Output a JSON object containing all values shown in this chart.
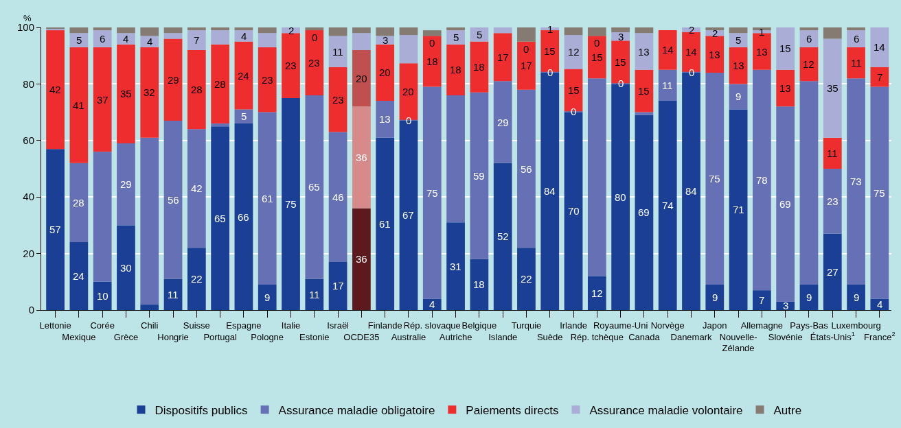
{
  "chart_data": {
    "type": "bar",
    "stacked": true,
    "ylabel": "%",
    "categories": [
      "Lettonie",
      "Mexique",
      "Corée",
      "Grèce",
      "Chili",
      "Hongrie",
      "Suisse",
      "Portugal",
      "Espagne",
      "Pologne",
      "Italie",
      "Estonie",
      "Israël",
      "OCDE35",
      "Finlande",
      "Australie",
      "Rép. slovaque",
      "Autriche",
      "Belgique",
      "Islande",
      "Turquie",
      "Suède",
      "Irlande",
      "Rép. tchèque",
      "Royaume-Uni",
      "Canada",
      "Norvège",
      "Danemark",
      "Japon",
      "Nouvelle-Zélande",
      "Allemagne",
      "Slovénie",
      "Pays-Bas",
      "États-Unis$^{1}$",
      "Luxembourg",
      "France$^{2}$"
    ],
    "ylim": [
      0,
      100
    ],
    "yticks": [
      0,
      20,
      40,
      60,
      80,
      100
    ],
    "grid": "y",
    "legend": "bottom",
    "series": [
      {
        "name": "Dispositifs publics",
        "color": "#1a3f95",
        "colors": [
          "#1a3f95",
          "#1a3f95",
          "#1a3f95",
          "#1a3f95",
          "#1a3f95",
          "#1a3f95",
          "#1a3f95",
          "#1a3f95",
          "#1a3f95",
          "#1a3f95",
          "#1a3f95",
          "#1a3f95",
          "#1a3f95",
          "#5c1a1e",
          "#1a3f95",
          "#1a3f95",
          "#1a3f95",
          "#1a3f95",
          "#1a3f95",
          "#1a3f95",
          "#1a3f95",
          "#1a3f95",
          "#1a3f95",
          "#1a3f95",
          "#1a3f95",
          "#1a3f95",
          "#1a3f95",
          "#1a3f95",
          "#1a3f95",
          "#1a3f95",
          "#1a3f95",
          "#1a3f95",
          "#1a3f95",
          "#1a3f95",
          "#1a3f95",
          "#1a3f95"
        ],
        "values": [
          57,
          24,
          10,
          30,
          2,
          11,
          22,
          65,
          66,
          9,
          75,
          11,
          17,
          36,
          61,
          67,
          4,
          31,
          18,
          52,
          22,
          84,
          70,
          12,
          80,
          69,
          74,
          84,
          9,
          71,
          7,
          3,
          9,
          27,
          9,
          4
        ],
        "value_labels": [
          "57",
          "24",
          "10",
          "30",
          null,
          "11",
          "22",
          "65",
          "66",
          "9",
          "75",
          "11",
          "17",
          "36",
          "61",
          "67",
          "4",
          "31",
          "18",
          "52",
          "22",
          "84",
          "70",
          "12",
          "80",
          "69",
          "74",
          "84",
          "9",
          "71",
          "7",
          "3",
          "9",
          "27",
          "9",
          "4"
        ]
      },
      {
        "name": "Assurance maladie obligatoire",
        "color": "#6670b5",
        "colors": [
          "#6670b5",
          "#6670b5",
          "#6670b5",
          "#6670b5",
          "#6670b5",
          "#6670b5",
          "#6670b5",
          "#6670b5",
          "#6670b5",
          "#6670b5",
          "#6670b5",
          "#6670b5",
          "#6670b5",
          "#d68b8a",
          "#6670b5",
          "#6670b5",
          "#6670b5",
          "#6670b5",
          "#6670b5",
          "#6670b5",
          "#6670b5",
          "#6670b5",
          "#6670b5",
          "#6670b5",
          "#6670b5",
          "#6670b5",
          "#6670b5",
          "#6670b5",
          "#6670b5",
          "#6670b5",
          "#6670b5",
          "#6670b5",
          "#6670b5",
          "#6670b5",
          "#6670b5",
          "#6670b5"
        ],
        "values": [
          0,
          28,
          46,
          29,
          59,
          56,
          42,
          1,
          5,
          61,
          0,
          65,
          46,
          36,
          13,
          0.3,
          75,
          45,
          59,
          29,
          56,
          0.3,
          0.3,
          70,
          0.3,
          1,
          11,
          0.3,
          75,
          9,
          78,
          69,
          72,
          23,
          73,
          75
        ],
        "value_labels": [
          null,
          "28",
          null,
          "29",
          null,
          "56",
          "42",
          null,
          "5",
          "61",
          null,
          "65",
          "46",
          "36",
          "13",
          "0",
          "75",
          null,
          "59",
          "29",
          "56",
          "0",
          "0",
          null,
          "0",
          null,
          "11",
          "0",
          "75",
          "9",
          "78",
          "69",
          null,
          "23",
          "73",
          "75"
        ]
      },
      {
        "name": "Paiements directs",
        "color": "#ee2e2e",
        "colors": [
          "#ee2e2e",
          "#ee2e2e",
          "#ee2e2e",
          "#ee2e2e",
          "#ee2e2e",
          "#ee2e2e",
          "#ee2e2e",
          "#ee2e2e",
          "#ee2e2e",
          "#ee2e2e",
          "#ee2e2e",
          "#ee2e2e",
          "#ee2e2e",
          "#c0504f",
          "#ee2e2e",
          "#ee2e2e",
          "#ee2e2e",
          "#ee2e2e",
          "#ee2e2e",
          "#ee2e2e",
          "#ee2e2e",
          "#ee2e2e",
          "#ee2e2e",
          "#ee2e2e",
          "#ee2e2e",
          "#ee2e2e",
          "#ee2e2e",
          "#ee2e2e",
          "#ee2e2e",
          "#ee2e2e",
          "#ee2e2e",
          "#ee2e2e",
          "#ee2e2e",
          "#ee2e2e",
          "#ee2e2e",
          "#ee2e2e"
        ],
        "values": [
          42,
          41,
          37,
          35,
          32,
          29,
          28,
          28,
          24,
          23,
          23,
          23,
          23,
          20,
          20,
          20,
          18,
          18,
          18,
          17,
          17,
          14.7,
          15,
          15,
          15,
          15,
          14,
          14,
          13,
          13,
          13,
          13,
          12,
          11,
          11,
          7
        ],
        "value_labels": [
          "42",
          "41",
          "37",
          "35",
          "32",
          "29",
          "28",
          "28",
          "24",
          "23",
          "23",
          "23",
          "23",
          "20",
          "20",
          "20",
          "18",
          "18",
          "18",
          "17",
          "17",
          "15",
          "15",
          "15",
          "15",
          "15",
          "14",
          "14",
          "13",
          "13",
          "13",
          "13",
          "12",
          "11",
          "11",
          "7"
        ]
      },
      {
        "name": "Assurance maladie volontaire",
        "color": "#aaaed6",
        "values": [
          0.5,
          5,
          6,
          4,
          4,
          2,
          7,
          5,
          4,
          5,
          2,
          0,
          11,
          6,
          3,
          10,
          0,
          5,
          5,
          2,
          0,
          1,
          12,
          0,
          3,
          13,
          0,
          1.7,
          2,
          5,
          1,
          15,
          6,
          35,
          6,
          14
        ],
        "value_labels": [
          null,
          "5",
          "6",
          "4",
          "4",
          null,
          "7",
          null,
          "4",
          null,
          "2",
          "0",
          "11",
          null,
          "3",
          null,
          "0",
          "5",
          "5",
          null,
          "0",
          "1",
          "12",
          "0",
          "3",
          "13",
          null,
          "2",
          "2",
          "5",
          "1",
          "15",
          "6",
          "35",
          "6",
          "14"
        ]
      },
      {
        "name": "Autre",
        "color": "#857b72",
        "values": [
          0.5,
          2,
          1,
          2,
          3,
          2,
          1,
          1,
          1,
          2,
          0,
          1,
          3,
          2,
          3,
          2.7,
          2,
          1,
          0,
          0,
          5,
          0,
          2.7,
          3,
          1.7,
          2,
          0,
          0,
          1,
          2,
          1,
          0,
          1,
          4,
          1,
          0
        ]
      }
    ]
  }
}
